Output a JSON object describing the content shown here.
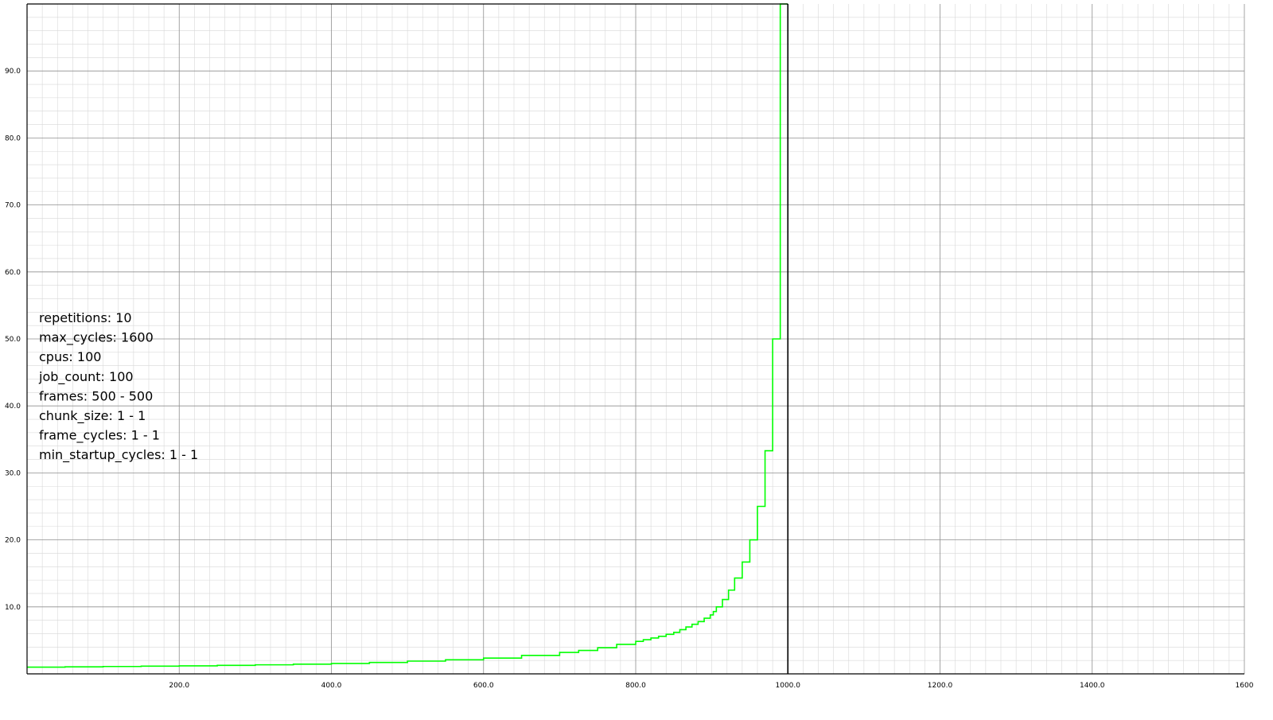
{
  "chart_data": {
    "type": "line",
    "title": "",
    "xlabel": "",
    "ylabel": "",
    "xlim": [
      0,
      1600
    ],
    "ylim": [
      0,
      100
    ],
    "grid": true,
    "minor_grid": true,
    "x_ticks": [
      200,
      400,
      600,
      800,
      1000,
      1200,
      1400,
      1600
    ],
    "x_tick_labels": [
      "200.0",
      "400.0",
      "600.0",
      "800.0",
      "1000.0",
      "1200.0",
      "1400.0",
      "1600"
    ],
    "y_ticks": [
      10,
      20,
      30,
      40,
      50,
      60,
      70,
      80,
      90
    ],
    "y_tick_labels": [
      "10.0",
      "20.0",
      "30.0",
      "40.0",
      "50.0",
      "60.0",
      "70.0",
      "80.0",
      "90.0"
    ],
    "reference_line": {
      "x": 1000,
      "color": "#000000"
    },
    "series": [
      {
        "color": "#00ff00",
        "step": true,
        "points": [
          [
            0,
            1.0
          ],
          [
            10,
            1.0
          ],
          [
            50,
            1.05
          ],
          [
            100,
            1.1
          ],
          [
            150,
            1.15
          ],
          [
            200,
            1.2
          ],
          [
            250,
            1.27
          ],
          [
            300,
            1.35
          ],
          [
            350,
            1.45
          ],
          [
            400,
            1.55
          ],
          [
            450,
            1.7
          ],
          [
            500,
            1.9
          ],
          [
            550,
            2.1
          ],
          [
            600,
            2.35
          ],
          [
            650,
            2.75
          ],
          [
            700,
            3.2
          ],
          [
            725,
            3.5
          ],
          [
            750,
            3.9
          ],
          [
            775,
            4.4
          ],
          [
            800,
            4.85
          ],
          [
            810,
            5.1
          ],
          [
            820,
            5.35
          ],
          [
            830,
            5.6
          ],
          [
            840,
            5.9
          ],
          [
            850,
            6.2
          ],
          [
            858,
            6.6
          ],
          [
            866,
            7.0
          ],
          [
            874,
            7.4
          ],
          [
            882,
            7.8
          ],
          [
            890,
            8.3
          ],
          [
            898,
            8.8
          ],
          [
            902,
            9.3
          ],
          [
            906,
            10.0
          ],
          [
            914,
            11.1
          ],
          [
            922,
            12.5
          ],
          [
            930,
            14.3
          ],
          [
            940,
            16.7
          ],
          [
            950,
            20.0
          ],
          [
            960,
            25.0
          ],
          [
            970,
            33.3
          ],
          [
            980,
            50.0
          ],
          [
            990,
            100.0
          ],
          [
            1000,
            100.0
          ]
        ]
      }
    ]
  },
  "info_lines": [
    "repetitions: 10",
    "max_cycles: 1600",
    "cpus: 100",
    "job_count: 100",
    "frames: 500 - 500",
    "chunk_size: 1 - 1",
    "frame_cycles: 1 - 1",
    "min_startup_cycles: 1 - 1"
  ]
}
